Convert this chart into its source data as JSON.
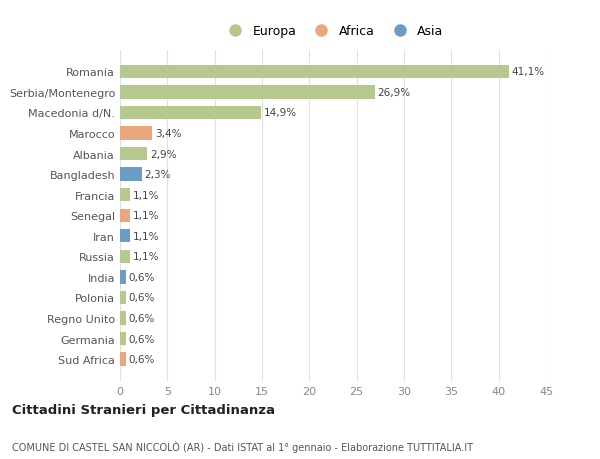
{
  "countries": [
    "Romania",
    "Serbia/Montenegro",
    "Macedonia d/N.",
    "Marocco",
    "Albania",
    "Bangladesh",
    "Francia",
    "Senegal",
    "Iran",
    "Russia",
    "India",
    "Polonia",
    "Regno Unito",
    "Germania",
    "Sud Africa"
  ],
  "values": [
    41.1,
    26.9,
    14.9,
    3.4,
    2.9,
    2.3,
    1.1,
    1.1,
    1.1,
    1.1,
    0.6,
    0.6,
    0.6,
    0.6,
    0.6
  ],
  "labels": [
    "41,1%",
    "26,9%",
    "14,9%",
    "3,4%",
    "2,9%",
    "2,3%",
    "1,1%",
    "1,1%",
    "1,1%",
    "1,1%",
    "0,6%",
    "0,6%",
    "0,6%",
    "0,6%",
    "0,6%"
  ],
  "continents": [
    "Europa",
    "Europa",
    "Europa",
    "Africa",
    "Europa",
    "Asia",
    "Europa",
    "Africa",
    "Asia",
    "Europa",
    "Asia",
    "Europa",
    "Europa",
    "Europa",
    "Africa"
  ],
  "continent_colors": {
    "Europa": "#b5c98e",
    "Africa": "#e8a87c",
    "Asia": "#6b9ec4"
  },
  "legend_items": [
    "Europa",
    "Africa",
    "Asia"
  ],
  "legend_colors": [
    "#b5c98e",
    "#e8a87c",
    "#6b9ec4"
  ],
  "xlim": [
    0,
    45
  ],
  "xticks": [
    0,
    5,
    10,
    15,
    20,
    25,
    30,
    35,
    40,
    45
  ],
  "title": "Cittadini Stranieri per Cittadinanza",
  "subtitle": "COMUNE DI CASTEL SAN NICCOLÒ (AR) - Dati ISTAT al 1° gennaio - Elaborazione TUTTITALIA.IT",
  "background_color": "#ffffff",
  "grid_color": "#e0e0e0",
  "bar_height": 0.65,
  "figsize": [
    6.0,
    4.6
  ],
  "dpi": 100
}
